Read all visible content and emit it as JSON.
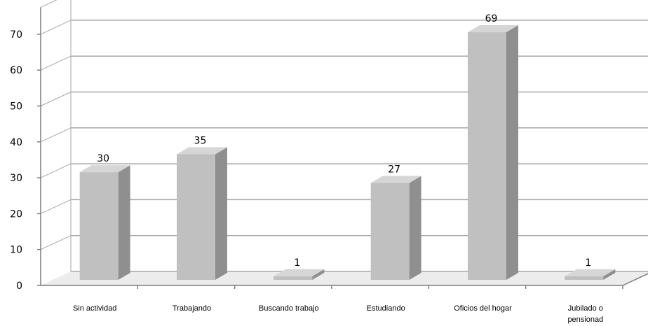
{
  "chart_data": {
    "type": "bar",
    "categories": [
      "Sin actividad",
      "Trabajando",
      "Buscando trabajo",
      "Estudiando",
      "Oficios del hogar",
      "Jubilado o pensionad"
    ],
    "values": [
      30,
      35,
      1,
      27,
      69,
      1
    ],
    "data_labels": [
      "30",
      "35",
      "1",
      "27",
      "69",
      "1"
    ],
    "yticks": [
      "0",
      "10",
      "20",
      "30",
      "40",
      "50",
      "60",
      "70"
    ],
    "ylim": [
      0,
      70
    ],
    "grid": true,
    "style": "3d-column",
    "colors": {
      "bar_front": "#c0c0c0",
      "bar_top": "#d6d6d6",
      "bar_side": "#8f8f8f",
      "grid": "#a6a6a6",
      "axis": "#7f7f7f",
      "floor": "#ececec"
    }
  }
}
